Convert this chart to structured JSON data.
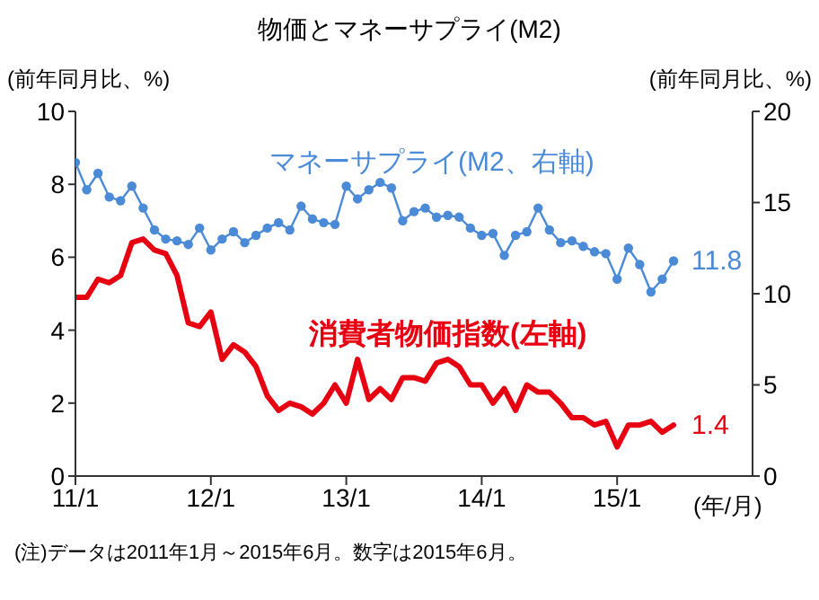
{
  "chart_data": {
    "type": "line",
    "title": "物価とマネーサプライ(M2)",
    "xlabel": "(年/月)",
    "ylabel": "(前年同月比、%)",
    "y2label": "(前年同月比、%)",
    "annotations": [
      "(注)データは2011年1月～2015年6月。数字は2015年6月。"
    ],
    "x": [
      "2011-01",
      "2011-02",
      "2011-03",
      "2011-04",
      "2011-05",
      "2011-06",
      "2011-07",
      "2011-08",
      "2011-09",
      "2011-10",
      "2011-11",
      "2011-12",
      "2012-01",
      "2012-02",
      "2012-03",
      "2012-04",
      "2012-05",
      "2012-06",
      "2012-07",
      "2012-08",
      "2012-09",
      "2012-10",
      "2012-11",
      "2012-12",
      "2013-01",
      "2013-02",
      "2013-03",
      "2013-04",
      "2013-05",
      "2013-06",
      "2013-07",
      "2013-08",
      "2013-09",
      "2013-10",
      "2013-11",
      "2013-12",
      "2014-01",
      "2014-02",
      "2014-03",
      "2014-04",
      "2014-05",
      "2014-06",
      "2014-07",
      "2014-08",
      "2014-09",
      "2014-10",
      "2014-11",
      "2014-12",
      "2015-01",
      "2015-02",
      "2015-03",
      "2015-04",
      "2015-05",
      "2015-06"
    ],
    "series": [
      {
        "name": "消費者物価指数(左軸)",
        "color": "#e60012",
        "marker": "none",
        "values": [
          4.9,
          4.9,
          5.4,
          5.3,
          5.5,
          6.4,
          6.5,
          6.2,
          6.1,
          5.5,
          4.2,
          4.1,
          4.5,
          3.2,
          3.6,
          3.4,
          3.0,
          2.2,
          1.8,
          2.0,
          1.9,
          1.7,
          2.0,
          2.5,
          2.0,
          3.2,
          2.1,
          2.4,
          2.1,
          2.7,
          2.7,
          2.6,
          3.1,
          3.2,
          3.0,
          2.5,
          2.5,
          2.0,
          2.4,
          1.8,
          2.5,
          2.3,
          2.3,
          2.0,
          1.6,
          1.6,
          1.4,
          1.5,
          0.8,
          1.4,
          1.4,
          1.5,
          1.2,
          1.4
        ],
        "value_labels": [
          null,
          null,
          null,
          null,
          null,
          null,
          null,
          null,
          null,
          null,
          null,
          null,
          null,
          null,
          null,
          null,
          null,
          null,
          null,
          null,
          null,
          null,
          null,
          null,
          null,
          null,
          null,
          null,
          null,
          null,
          null,
          null,
          null,
          null,
          null,
          null,
          null,
          null,
          null,
          null,
          null,
          null,
          null,
          null,
          null,
          null,
          null,
          null,
          null,
          null,
          null,
          null,
          null,
          "1.4"
        ]
      },
      {
        "name": "マネーサプライ(M2、右軸)",
        "color": "#4a8ad6",
        "axis": "y2",
        "values": [
          17.2,
          15.7,
          16.6,
          15.3,
          15.1,
          15.9,
          14.7,
          13.5,
          13.0,
          12.9,
          12.7,
          13.6,
          12.4,
          13.0,
          13.4,
          12.8,
          13.2,
          13.6,
          13.9,
          13.5,
          14.8,
          14.1,
          13.9,
          13.8,
          15.9,
          15.2,
          15.7,
          16.1,
          15.8,
          14.0,
          14.5,
          14.7,
          14.2,
          14.3,
          14.2,
          13.6,
          13.2,
          13.3,
          12.1,
          13.2,
          13.4,
          14.7,
          13.5,
          12.8,
          12.9,
          12.6,
          12.3,
          12.2,
          10.8,
          12.5,
          11.6,
          10.1,
          10.8,
          11.8
        ],
        "value_labels": [
          null,
          null,
          null,
          null,
          null,
          null,
          null,
          null,
          null,
          null,
          null,
          null,
          null,
          null,
          null,
          null,
          null,
          null,
          null,
          null,
          null,
          null,
          null,
          null,
          null,
          null,
          null,
          null,
          null,
          null,
          null,
          null,
          null,
          null,
          null,
          null,
          null,
          null,
          null,
          null,
          null,
          null,
          null,
          null,
          null,
          null,
          null,
          null,
          null,
          null,
          null,
          null,
          null,
          "11.8"
        ]
      }
    ],
    "xlim": [
      "2011-01",
      "2016-01"
    ],
    "xticks": [
      {
        "value": "2011-01",
        "label": "11/1"
      },
      {
        "value": "2012-01",
        "label": "12/1"
      },
      {
        "value": "2013-01",
        "label": "13/1"
      },
      {
        "value": "2014-01",
        "label": "14/1"
      },
      {
        "value": "2015-01",
        "label": "15/1"
      }
    ],
    "ylim": [
      0,
      10
    ],
    "yticks": [
      0,
      2,
      4,
      6,
      8,
      10
    ],
    "y2lim": [
      0,
      20
    ],
    "y2ticks": [
      0,
      5,
      10,
      15,
      20
    ],
    "marker": "circle"
  }
}
